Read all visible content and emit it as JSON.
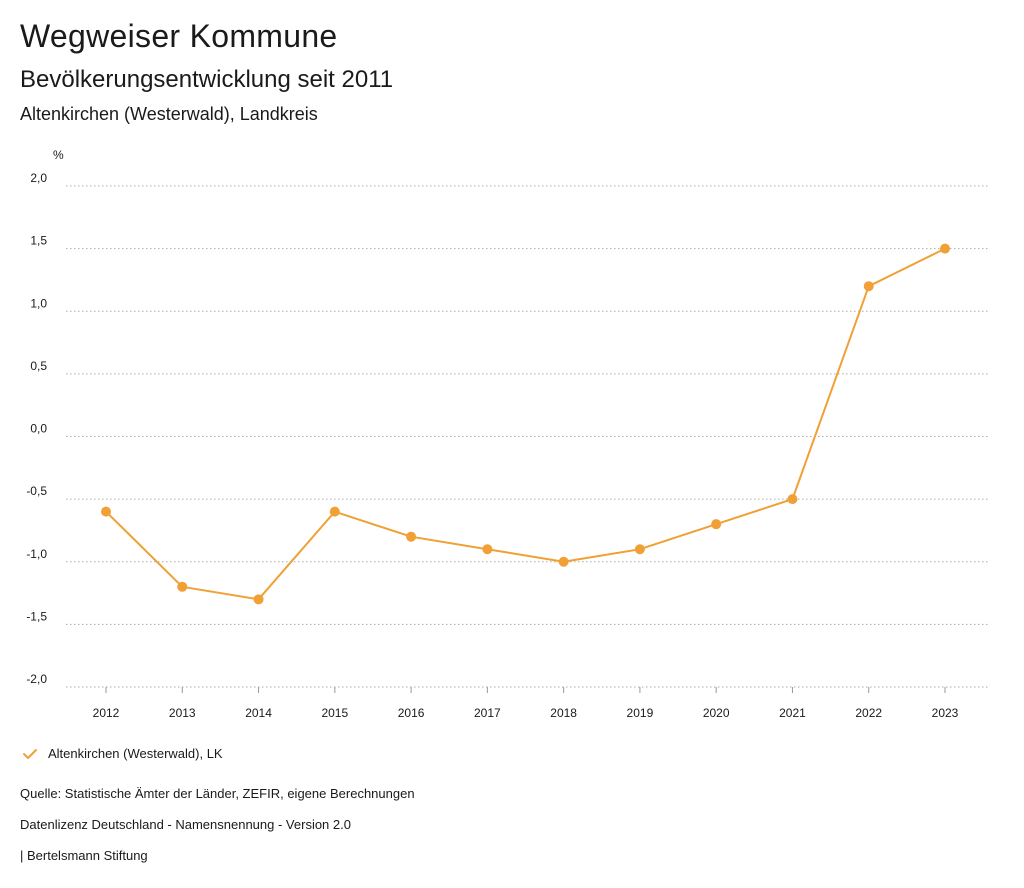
{
  "header": {
    "title": "Wegweiser Kommune",
    "subtitle": "Bevölkerungsentwicklung seit 2011",
    "region": "Altenkirchen (Westerwald), Landkreis"
  },
  "legend": {
    "label": "Altenkirchen (Westerwald), LK"
  },
  "footer": {
    "source": "Quelle: Statistische Ämter der Länder, ZEFIR, eigene Berechnungen",
    "license": "Datenlizenz Deutschland - Namensnennung - Version 2.0",
    "publisher": "| Bertelsmann Stiftung"
  },
  "colors": {
    "series": "#f0a035",
    "grid": "#aaaaaa",
    "text": "#1a1a1a"
  },
  "chart_data": {
    "type": "line",
    "ylabel": "%",
    "ylim": [
      -2.0,
      2.0
    ],
    "yticks": [
      2.0,
      1.5,
      1.0,
      0.5,
      0.0,
      -0.5,
      -1.0,
      -1.5,
      -2.0
    ],
    "ytick_labels": [
      "2,0",
      "1,5",
      "1,0",
      "0,5",
      "0,0",
      "-0,5",
      "-1,0",
      "-1,5",
      "-2,0"
    ],
    "categories": [
      "2012",
      "2013",
      "2014",
      "2015",
      "2016",
      "2017",
      "2018",
      "2019",
      "2020",
      "2021",
      "2022",
      "2023"
    ],
    "series": [
      {
        "name": "Altenkirchen (Westerwald), LK",
        "values": [
          -0.6,
          -1.2,
          -1.3,
          -0.6,
          -0.8,
          -0.9,
          -1.0,
          -0.9,
          -0.7,
          -0.5,
          1.2,
          1.5
        ]
      }
    ],
    "grid": true,
    "legend_position": "bottom-left"
  }
}
